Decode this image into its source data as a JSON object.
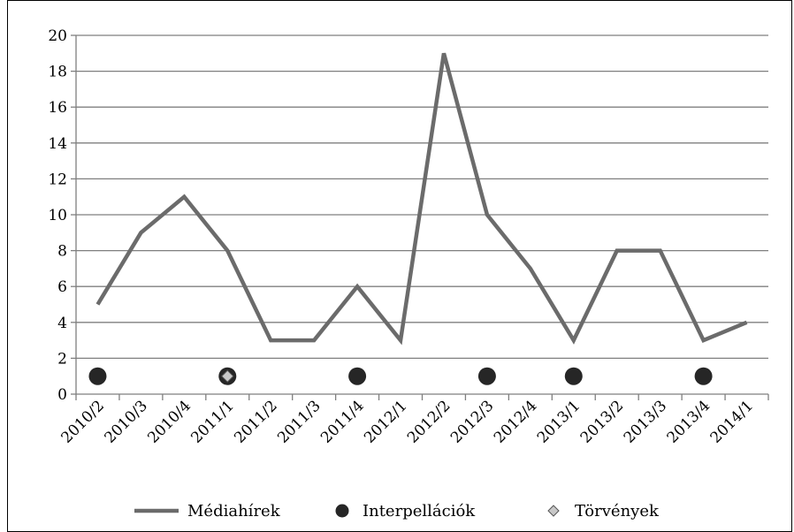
{
  "chart_data": {
    "type": "line",
    "categories": [
      "2010/2",
      "2010/3",
      "2010/4",
      "2011/1",
      "2011/2",
      "2011/3",
      "2011/4",
      "2012/1",
      "2012/2",
      "2012/3",
      "2012/4",
      "2013/1",
      "2013/2",
      "2013/3",
      "2013/4",
      "2014/1"
    ],
    "ylim": [
      0,
      20
    ],
    "yticks": [
      0,
      2,
      4,
      6,
      8,
      10,
      12,
      14,
      16,
      18,
      20
    ],
    "grid": true,
    "legend_position": "bottom",
    "series": [
      {
        "name": "Médiahírek",
        "kind": "line",
        "color": "#6b6b6b",
        "values": [
          5,
          9,
          11,
          8,
          3,
          3,
          6,
          3,
          19,
          10,
          7,
          3,
          8,
          8,
          3,
          4
        ]
      },
      {
        "name": "Interpellációk",
        "kind": "markers",
        "marker": "circle",
        "color": "#262626",
        "points": [
          {
            "x": 0.0,
            "y": 1
          },
          {
            "x": 6.0,
            "y": 1
          },
          {
            "x": 9.0,
            "y": 1
          },
          {
            "x": 11.0,
            "y": 1
          },
          {
            "x": 14.0,
            "y": 1
          }
        ]
      },
      {
        "name": "Törvények",
        "kind": "markers",
        "marker": "diamond",
        "color": "#c8c8c8",
        "points": [
          {
            "x": 3.0,
            "y": 1
          }
        ]
      }
    ]
  }
}
